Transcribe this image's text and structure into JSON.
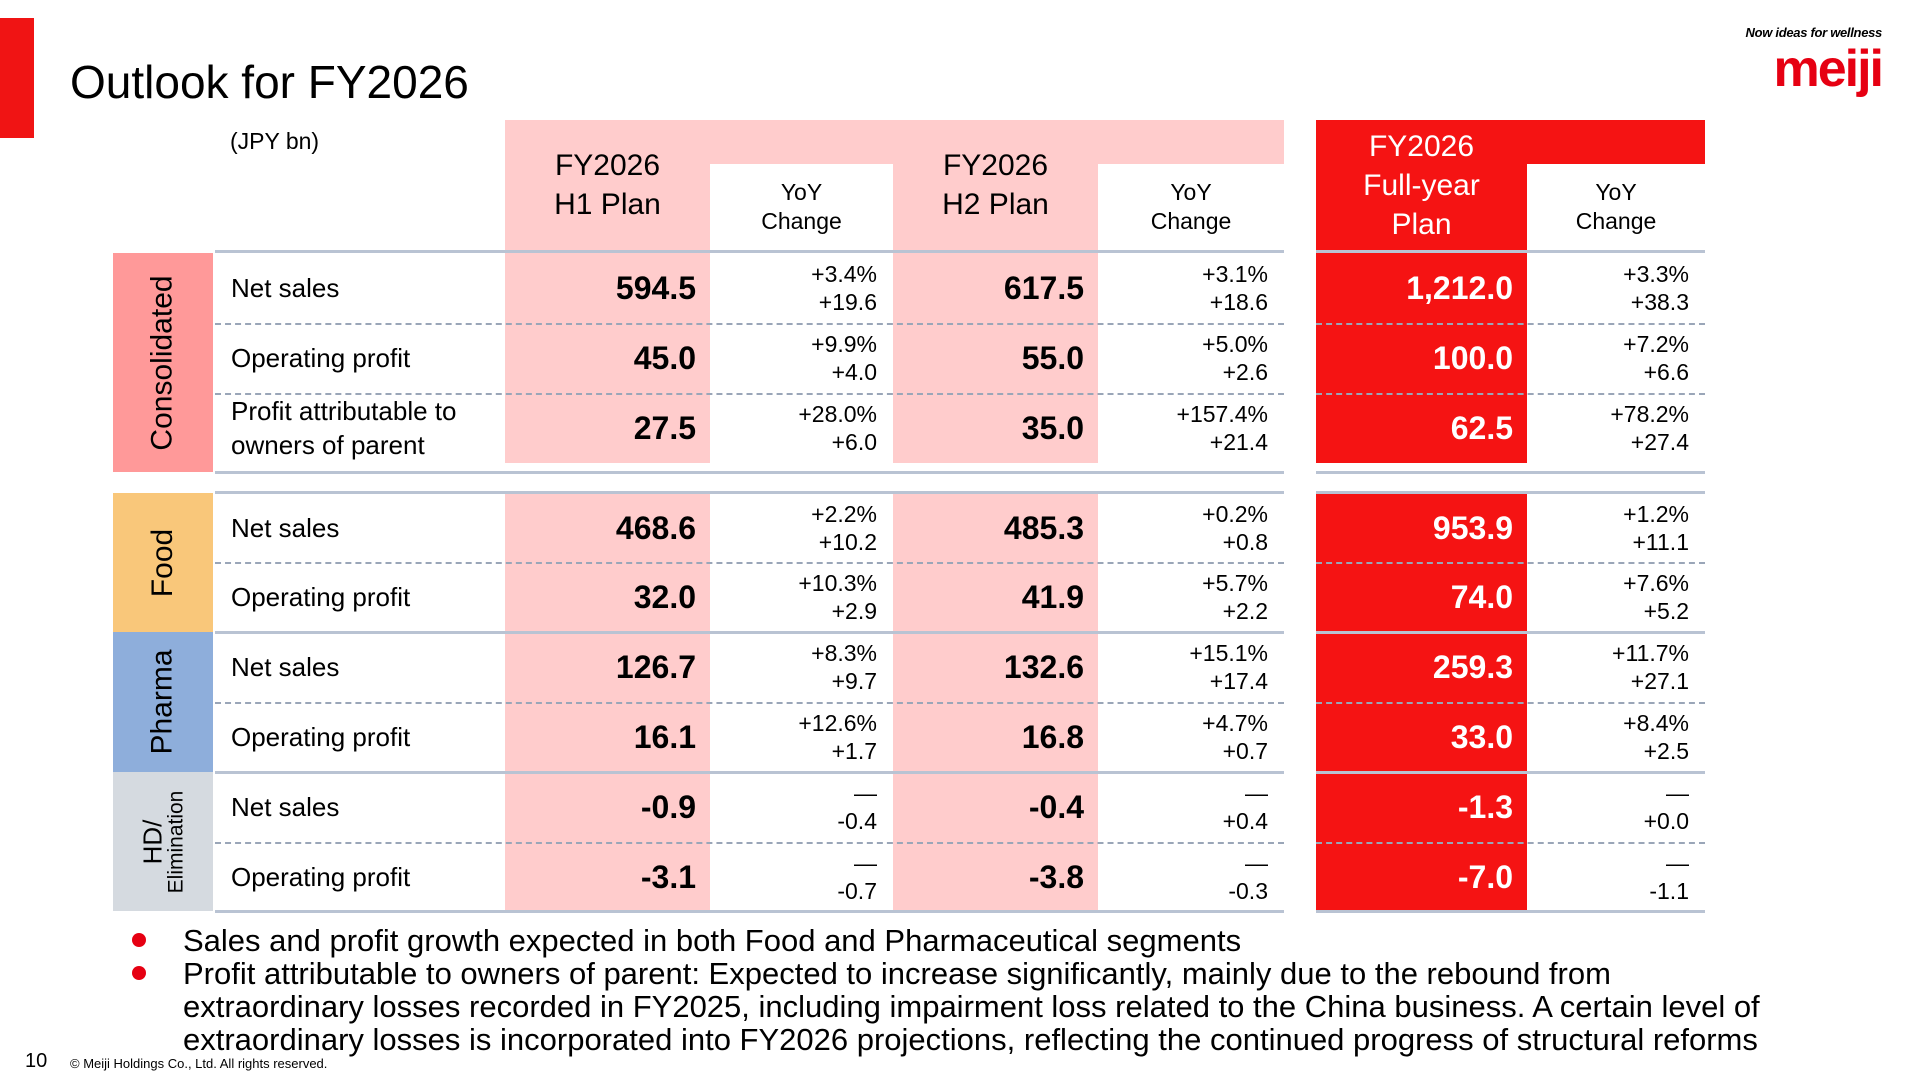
{
  "title": "Outlook for FY2026",
  "logo": {
    "tagline": "Now ideas for wellness",
    "wordmark": "meiji"
  },
  "unit": "(JPY bn)",
  "columns": {
    "h1": {
      "line1": "FY2026",
      "line2": "H1 Plan"
    },
    "h2": {
      "line1": "FY2026",
      "line2": "H2 Plan"
    },
    "fy": {
      "line1": "FY2026",
      "line2": "Full-year",
      "line3": "Plan"
    },
    "yoy": {
      "line1": "YoY",
      "line2": "Change"
    }
  },
  "segments": {
    "consolidated": "Consolidated",
    "food": "Food",
    "pharma": "Pharma",
    "hd_line1": "HD/",
    "hd_line2": "Elimination"
  },
  "rows": [
    {
      "label1": "Net sales",
      "label2": "",
      "h1": "594.5",
      "h1_pct": "+3.4%",
      "h1_abs": "+19.6",
      "h2": "617.5",
      "h2_pct": "+3.1%",
      "h2_abs": "+18.6",
      "fy": "1,212.0",
      "fy_pct": "+3.3%",
      "fy_abs": "+38.3"
    },
    {
      "label1": "Operating profit",
      "label2": "",
      "h1": "45.0",
      "h1_pct": "+9.9%",
      "h1_abs": "+4.0",
      "h2": "55.0",
      "h2_pct": "+5.0%",
      "h2_abs": "+2.6",
      "fy": "100.0",
      "fy_pct": "+7.2%",
      "fy_abs": "+6.6"
    },
    {
      "label1": "Profit attributable to",
      "label2": "owners of parent",
      "h1": "27.5",
      "h1_pct": "+28.0%",
      "h1_abs": "+6.0",
      "h2": "35.0",
      "h2_pct": "+157.4%",
      "h2_abs": "+21.4",
      "fy": "62.5",
      "fy_pct": "+78.2%",
      "fy_abs": "+27.4"
    },
    {
      "label1": "Net sales",
      "label2": "",
      "h1": "468.6",
      "h1_pct": "+2.2%",
      "h1_abs": "+10.2",
      "h2": "485.3",
      "h2_pct": "+0.2%",
      "h2_abs": "+0.8",
      "fy": "953.9",
      "fy_pct": "+1.2%",
      "fy_abs": "+11.1"
    },
    {
      "label1": "Operating profit",
      "label2": "",
      "h1": "32.0",
      "h1_pct": "+10.3%",
      "h1_abs": "+2.9",
      "h2": "41.9",
      "h2_pct": "+5.7%",
      "h2_abs": "+2.2",
      "fy": "74.0",
      "fy_pct": "+7.6%",
      "fy_abs": "+5.2"
    },
    {
      "label1": "Net sales",
      "label2": "",
      "h1": "126.7",
      "h1_pct": "+8.3%",
      "h1_abs": "+9.7",
      "h2": "132.6",
      "h2_pct": "+15.1%",
      "h2_abs": "+17.4",
      "fy": "259.3",
      "fy_pct": "+11.7%",
      "fy_abs": "+27.1"
    },
    {
      "label1": "Operating profit",
      "label2": "",
      "h1": "16.1",
      "h1_pct": "+12.6%",
      "h1_abs": "+1.7",
      "h2": "16.8",
      "h2_pct": "+4.7%",
      "h2_abs": "+0.7",
      "fy": "33.0",
      "fy_pct": "+8.4%",
      "fy_abs": "+2.5"
    },
    {
      "label1": "Net sales",
      "label2": "",
      "h1": "-0.9",
      "h1_pct": "—",
      "h1_abs": "-0.4",
      "h2": "-0.4",
      "h2_pct": "—",
      "h2_abs": "+0.4",
      "fy": "-1.3",
      "fy_pct": "—",
      "fy_abs": "+0.0"
    },
    {
      "label1": "Operating profit",
      "label2": "",
      "h1": "-3.1",
      "h1_pct": "—",
      "h1_abs": "-0.7",
      "h2": "-3.8",
      "h2_pct": "—",
      "h2_abs": "-0.3",
      "fy": "-7.0",
      "fy_pct": "—",
      "fy_abs": "-1.1"
    }
  ],
  "bullets": {
    "b1": "Sales and profit growth expected in both Food and Pharmaceutical segments",
    "b2_line1": "Profit attributable to owners of parent: Expected to increase significantly, mainly due to the rebound from",
    "b2_line2": "extraordinary losses recorded in FY2025, including impairment loss related to the China business. A certain level of",
    "b2_line3": "extraordinary losses is incorporated into FY2026 projections, reflecting the continued progress of structural reforms"
  },
  "footer": {
    "page": "10",
    "copyright": "© Meiji Holdings Co., Ltd. All rights reserved."
  },
  "colors": {
    "accent": "#f01414",
    "full_year": "#f51313",
    "half_year": "#ffcccc",
    "consolidated": "#ff9999",
    "food": "#f9c77a",
    "pharma": "#8eaedb",
    "hd": "#d5dae0"
  }
}
